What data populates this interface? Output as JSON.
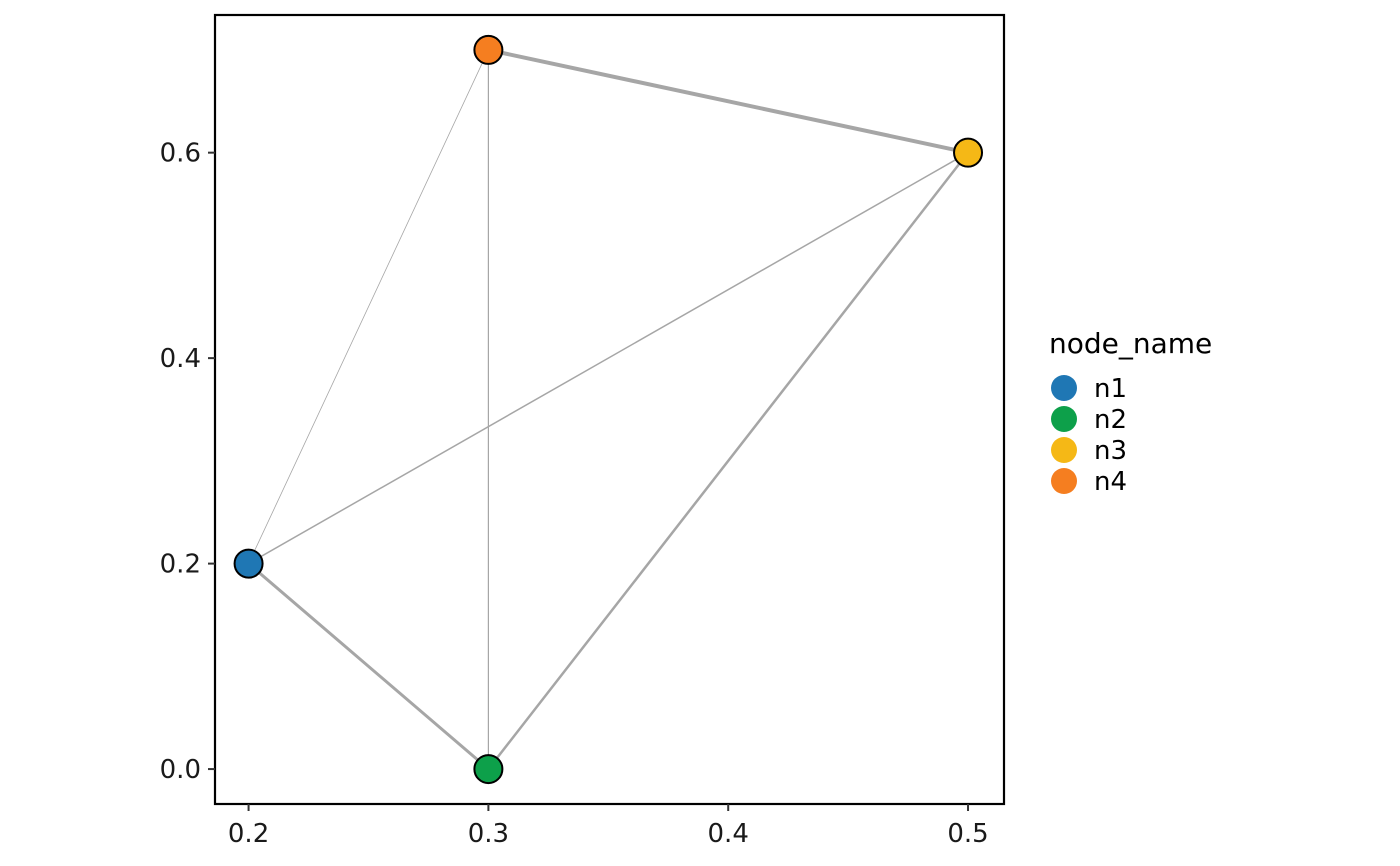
{
  "chart_data": {
    "type": "scatter",
    "title": "",
    "xlabel": "",
    "ylabel": "",
    "xlim": [
      0.186,
      0.515
    ],
    "ylim": [
      -0.034,
      0.734
    ],
    "x_ticks": [
      "0.2",
      "0.3",
      "0.4",
      "0.5"
    ],
    "y_ticks": [
      "0.0",
      "0.2",
      "0.4",
      "0.6"
    ],
    "grid": false,
    "legend": {
      "title": "node_name",
      "placement": "right",
      "entries": [
        "n1",
        "n2",
        "n3",
        "n4"
      ]
    },
    "nodes": [
      {
        "name": "n1",
        "x": 0.2,
        "y": 0.2,
        "color": "#1F77B4"
      },
      {
        "name": "n2",
        "x": 0.3,
        "y": 0.0,
        "color": "#0DA04A"
      },
      {
        "name": "n3",
        "x": 0.5,
        "y": 0.6,
        "color": "#F5B816"
      },
      {
        "name": "n4",
        "x": 0.3,
        "y": 0.7,
        "color": "#F57E20"
      }
    ],
    "edges": [
      {
        "from": "n1",
        "to": "n2",
        "weight": 3
      },
      {
        "from": "n1",
        "to": "n3",
        "weight": 1.5
      },
      {
        "from": "n1",
        "to": "n4",
        "weight": 0.8
      },
      {
        "from": "n2",
        "to": "n3",
        "weight": 2.5
      },
      {
        "from": "n2",
        "to": "n4",
        "weight": 1.2
      },
      {
        "from": "n3",
        "to": "n4",
        "weight": 4
      }
    ],
    "edge_color": "#A6A6A6"
  }
}
